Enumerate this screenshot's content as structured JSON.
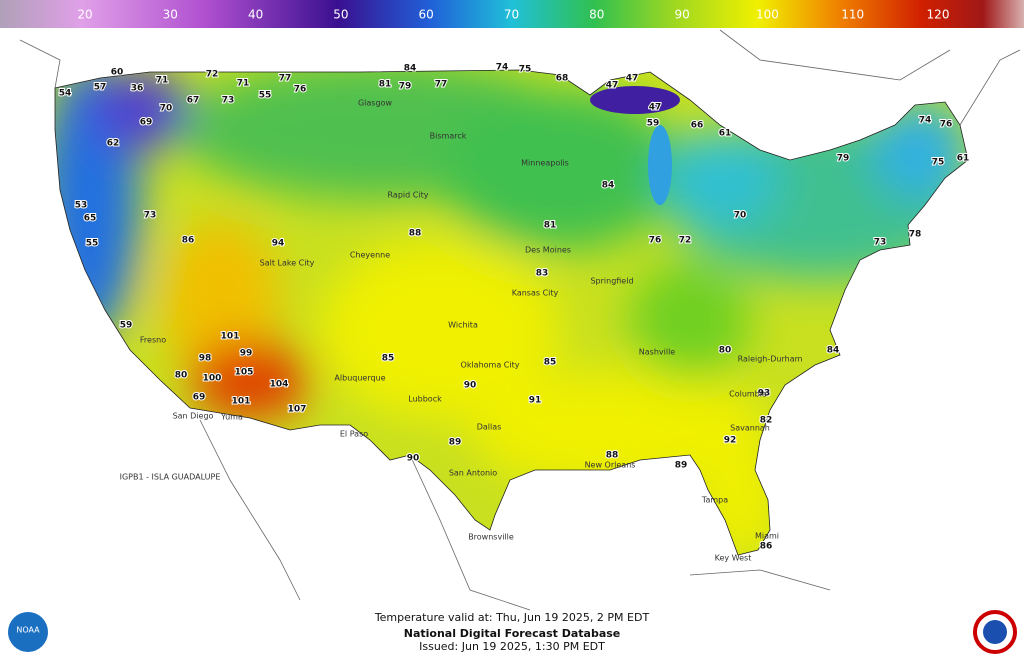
{
  "color_scale": {
    "labels": [
      20,
      30,
      40,
      50,
      60,
      70,
      80,
      90,
      100,
      110,
      120
    ]
  },
  "temperatures": [
    54,
    57,
    60,
    36,
    71,
    70,
    67,
    72,
    73,
    71,
    55,
    77,
    76,
    81,
    84,
    79,
    77,
    74,
    75,
    68,
    47,
    47,
    47,
    59,
    66,
    61,
    74,
    76,
    75,
    61,
    62,
    69,
    53,
    65,
    55,
    73,
    86,
    94,
    101,
    99,
    98,
    105,
    100,
    104,
    107,
    101,
    69,
    80,
    59,
    88,
    85,
    90,
    89,
    90,
    91,
    88,
    89,
    92,
    86,
    82,
    93,
    84,
    79,
    73,
    78,
    80,
    76,
    72,
    70,
    81,
    83,
    85,
    84
  ],
  "cities": [
    "Glasgow",
    "Bismarck",
    "Rapid City",
    "Minneapolis",
    "Salt Lake City",
    "Cheyenne",
    "Des Moines",
    "Kansas City",
    "Springfield",
    "Wichita",
    "Oklahoma City",
    "Albuquerque",
    "Lubbock",
    "Dallas",
    "El Paso",
    "San Antonio",
    "Brownsville",
    "Yuma",
    "San Diego",
    "Fresno",
    "Nashville",
    "Raleigh-Durham",
    "Columbia",
    "Savannah",
    "New Orleans",
    "Tampa",
    "Miami",
    "Key West"
  ],
  "other_labels": [
    "IGPB1 - ISLA GUADALUPE",
    "NOAA"
  ],
  "footer": {
    "valid": "Temperature valid at: Thu, Jun 19 2025, 2 PM EDT",
    "title": "National Digital Forecast Database",
    "issued": "Issued: Jun 19 2025, 1:30 PM EDT"
  }
}
